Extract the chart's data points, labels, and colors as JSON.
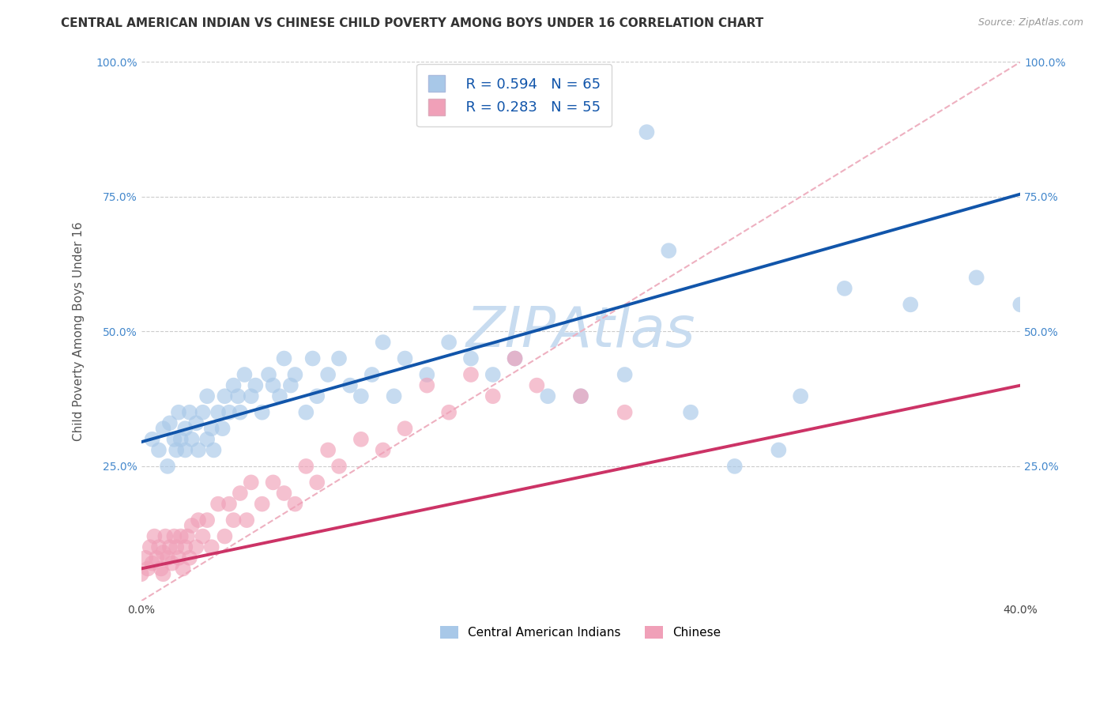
{
  "title": "CENTRAL AMERICAN INDIAN VS CHINESE CHILD POVERTY AMONG BOYS UNDER 16 CORRELATION CHART",
  "source": "Source: ZipAtlas.com",
  "ylabel": "Child Poverty Among Boys Under 16",
  "xlim": [
    0.0,
    0.4
  ],
  "ylim": [
    0.0,
    1.0
  ],
  "blue_color": "#A8C8E8",
  "pink_color": "#F0A0B8",
  "blue_line_color": "#1155AA",
  "pink_line_color": "#CC3366",
  "diag_line_color": "#EEB0C0",
  "grid_color": "#CCCCCC",
  "watermark": "ZIPAtlas",
  "watermark_color": "#C8DCF0",
  "legend_R_blue": "R = 0.594",
  "legend_N_blue": "N = 65",
  "legend_R_pink": "R = 0.283",
  "legend_N_pink": "N = 55",
  "legend_text_color": "#1155AA",
  "title_fontsize": 11,
  "axis_label_fontsize": 11,
  "tick_fontsize": 10,
  "watermark_fontsize": 52,
  "background_color": "#FFFFFF",
  "blue_x": [
    0.005,
    0.008,
    0.01,
    0.012,
    0.013,
    0.015,
    0.016,
    0.017,
    0.018,
    0.02,
    0.02,
    0.022,
    0.023,
    0.025,
    0.026,
    0.028,
    0.03,
    0.03,
    0.032,
    0.033,
    0.035,
    0.037,
    0.038,
    0.04,
    0.042,
    0.044,
    0.045,
    0.047,
    0.05,
    0.052,
    0.055,
    0.058,
    0.06,
    0.063,
    0.065,
    0.068,
    0.07,
    0.075,
    0.078,
    0.08,
    0.085,
    0.09,
    0.095,
    0.1,
    0.105,
    0.11,
    0.115,
    0.12,
    0.13,
    0.14,
    0.15,
    0.16,
    0.17,
    0.185,
    0.2,
    0.22,
    0.25,
    0.27,
    0.3,
    0.32,
    0.35,
    0.38,
    0.4,
    0.24,
    0.29
  ],
  "blue_y": [
    0.3,
    0.28,
    0.32,
    0.25,
    0.33,
    0.3,
    0.28,
    0.35,
    0.3,
    0.32,
    0.28,
    0.35,
    0.3,
    0.33,
    0.28,
    0.35,
    0.3,
    0.38,
    0.32,
    0.28,
    0.35,
    0.32,
    0.38,
    0.35,
    0.4,
    0.38,
    0.35,
    0.42,
    0.38,
    0.4,
    0.35,
    0.42,
    0.4,
    0.38,
    0.45,
    0.4,
    0.42,
    0.35,
    0.45,
    0.38,
    0.42,
    0.45,
    0.4,
    0.38,
    0.42,
    0.48,
    0.38,
    0.45,
    0.42,
    0.48,
    0.45,
    0.42,
    0.45,
    0.38,
    0.38,
    0.42,
    0.35,
    0.25,
    0.38,
    0.58,
    0.55,
    0.6,
    0.55,
    0.65,
    0.28
  ],
  "pink_x": [
    0.0,
    0.002,
    0.003,
    0.004,
    0.005,
    0.006,
    0.007,
    0.008,
    0.009,
    0.01,
    0.01,
    0.011,
    0.012,
    0.013,
    0.014,
    0.015,
    0.016,
    0.017,
    0.018,
    0.019,
    0.02,
    0.021,
    0.022,
    0.023,
    0.025,
    0.026,
    0.028,
    0.03,
    0.032,
    0.035,
    0.038,
    0.04,
    0.042,
    0.045,
    0.048,
    0.05,
    0.055,
    0.06,
    0.065,
    0.07,
    0.075,
    0.08,
    0.085,
    0.09,
    0.1,
    0.11,
    0.12,
    0.14,
    0.16,
    0.18,
    0.2,
    0.22,
    0.15,
    0.17,
    0.13
  ],
  "pink_y": [
    0.05,
    0.08,
    0.06,
    0.1,
    0.07,
    0.12,
    0.08,
    0.1,
    0.06,
    0.09,
    0.05,
    0.12,
    0.08,
    0.1,
    0.07,
    0.12,
    0.1,
    0.08,
    0.12,
    0.06,
    0.1,
    0.12,
    0.08,
    0.14,
    0.1,
    0.15,
    0.12,
    0.15,
    0.1,
    0.18,
    0.12,
    0.18,
    0.15,
    0.2,
    0.15,
    0.22,
    0.18,
    0.22,
    0.2,
    0.18,
    0.25,
    0.22,
    0.28,
    0.25,
    0.3,
    0.28,
    0.32,
    0.35,
    0.38,
    0.4,
    0.38,
    0.35,
    0.42,
    0.45,
    0.4
  ],
  "blue_line_x0": 0.0,
  "blue_line_y0": 0.295,
  "blue_line_x1": 0.4,
  "blue_line_y1": 0.755,
  "pink_line_x0": 0.0,
  "pink_line_y0": 0.06,
  "pink_line_x1": 0.4,
  "pink_line_y1": 0.4
}
